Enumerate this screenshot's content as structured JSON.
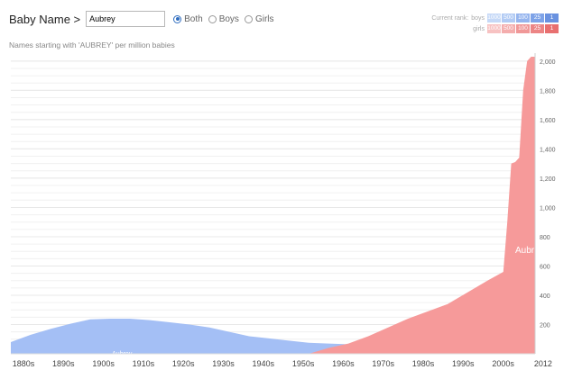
{
  "header": {
    "brand": "Baby Name >",
    "name_value": "Aubrey",
    "options": [
      {
        "label": "Both",
        "selected": true
      },
      {
        "label": "Boys",
        "selected": false
      },
      {
        "label": "Girls",
        "selected": false
      }
    ]
  },
  "subtitle": "Names starting with 'AUBREY' per million babies",
  "rank_legend": {
    "label": "Current rank:",
    "rows": [
      {
        "gender": "boys",
        "cells": [
          "1000",
          "500",
          "100",
          "25",
          "1"
        ],
        "colors": [
          "#c6d9f7",
          "#b2cbf4",
          "#96b5ee",
          "#7ea3e8",
          "#6a92e0"
        ]
      },
      {
        "gender": "girls",
        "cells": [
          "1000",
          "500",
          "100",
          "25",
          "1"
        ],
        "colors": [
          "#f7c2c2",
          "#f4adad",
          "#f09898",
          "#ec8585",
          "#e87070"
        ]
      }
    ]
  },
  "colors": {
    "boys": "#a4bff5",
    "girls": "#f69a9a",
    "grid": "#e8e8e8",
    "axis": "#dddddd"
  },
  "chart_data": {
    "type": "area",
    "stacked": false,
    "x_ticks": [
      "1880s",
      "1890s",
      "1900s",
      "1910s",
      "1920s",
      "1930s",
      "1940s",
      "1950s",
      "1960s",
      "1970s",
      "1980s",
      "1990s",
      "2000s",
      "2012"
    ],
    "y_ticks": [
      200,
      400,
      600,
      800,
      1000,
      1200,
      1400,
      1600,
      1800,
      2000
    ],
    "y_tick_labels": [
      "200",
      "400",
      "600",
      "800",
      "1,000",
      "1,200",
      "1,400",
      "1,600",
      "1,800",
      "2,000"
    ],
    "ylim": [
      0,
      2030
    ],
    "xlim": [
      1880,
      2012
    ],
    "series": [
      {
        "name": "Aubrey",
        "gender": "boys",
        "label_year": 1908,
        "label_value": 80,
        "points": [
          [
            1880,
            80
          ],
          [
            1885,
            130
          ],
          [
            1890,
            170
          ],
          [
            1895,
            205
          ],
          [
            1900,
            235
          ],
          [
            1905,
            240
          ],
          [
            1910,
            240
          ],
          [
            1915,
            230
          ],
          [
            1920,
            215
          ],
          [
            1925,
            200
          ],
          [
            1930,
            180
          ],
          [
            1935,
            150
          ],
          [
            1940,
            120
          ],
          [
            1945,
            105
          ],
          [
            1950,
            90
          ],
          [
            1955,
            75
          ],
          [
            1960,
            70
          ],
          [
            1965,
            65
          ],
          [
            1970,
            62
          ],
          [
            1975,
            60
          ],
          [
            1980,
            58
          ],
          [
            1985,
            55
          ],
          [
            1990,
            50
          ],
          [
            1995,
            35
          ],
          [
            2000,
            20
          ],
          [
            2005,
            10
          ],
          [
            2010,
            5
          ],
          [
            2012,
            5
          ]
        ]
      },
      {
        "name": "Aubrey",
        "gender": "girls",
        "label_year": 2007,
        "label_value": 690,
        "points": [
          [
            1880,
            0
          ],
          [
            1955,
            0
          ],
          [
            1960,
            40
          ],
          [
            1965,
            70
          ],
          [
            1970,
            120
          ],
          [
            1975,
            180
          ],
          [
            1980,
            240
          ],
          [
            1985,
            290
          ],
          [
            1990,
            340
          ],
          [
            1995,
            420
          ],
          [
            2000,
            500
          ],
          [
            2004,
            560
          ],
          [
            2005,
            900
          ],
          [
            2006,
            1300
          ],
          [
            2007,
            1310
          ],
          [
            2008,
            1340
          ],
          [
            2009,
            1800
          ],
          [
            2010,
            2000
          ],
          [
            2011,
            2030
          ],
          [
            2012,
            2030
          ]
        ]
      }
    ]
  }
}
